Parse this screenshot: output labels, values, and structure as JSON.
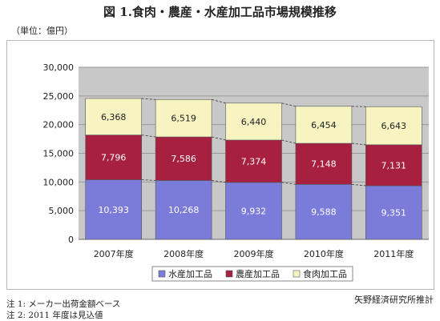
{
  "title": "図 1.食肉・農産・水産加工品市場規模推移",
  "unit_label": "（単位：億円）",
  "source": "矢野経済研究所推計",
  "notes": [
    "注 1: メーカー出荷金額ベース",
    "注 2: 2011 年度は見込値"
  ],
  "colors": {
    "fish": "#7b7bd9",
    "agri": "#a8203f",
    "meat": "#f7f4c2",
    "plot_bg": "#c8c8c8",
    "grid": "#9a9a9a"
  },
  "chart_data": {
    "type": "bar",
    "stacked": true,
    "categories": [
      "2007年度",
      "2008年度",
      "2009年度",
      "2010年度",
      "2011年度"
    ],
    "series": [
      {
        "name": "水産加工品",
        "values": [
          10393,
          10268,
          9932,
          9588,
          9351
        ]
      },
      {
        "name": "農産加工品",
        "values": [
          7796,
          7586,
          7374,
          7148,
          7131
        ]
      },
      {
        "name": "食肉加工品",
        "values": [
          6368,
          6519,
          6440,
          6454,
          6643
        ]
      }
    ],
    "data_labels": [
      [
        "10,393",
        "10,268",
        "9,932",
        "9,588",
        "9,351"
      ],
      [
        "7,796",
        "7,586",
        "7,374",
        "7,148",
        "7,131"
      ],
      [
        "6,368",
        "6,519",
        "6,440",
        "6,454",
        "6,643"
      ]
    ],
    "y_ticks": [
      "0",
      "5,000",
      "10,000",
      "15,000",
      "20,000",
      "25,000",
      "30,000"
    ],
    "ylim": [
      0,
      30000
    ],
    "grid": true,
    "legend": "bottom",
    "connector_lines": true
  }
}
